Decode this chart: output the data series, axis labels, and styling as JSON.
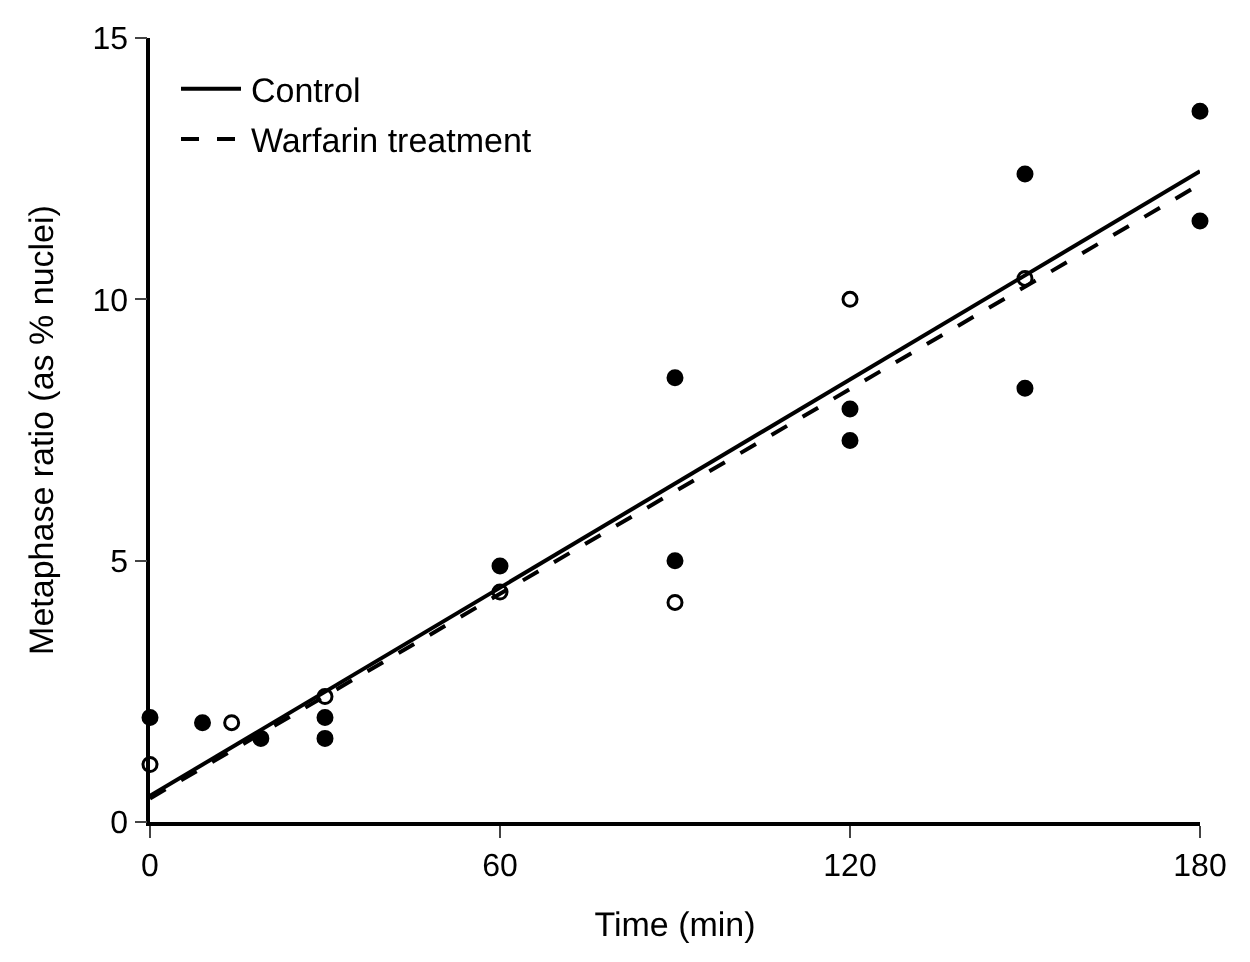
{
  "chart_data": {
    "type": "scatter",
    "xlabel": "Time (min)",
    "ylabel": "Metaphase ratio (as % nuclei)",
    "xlim": [
      0,
      180
    ],
    "ylim": [
      0,
      15
    ],
    "xticks": [
      0,
      60,
      120,
      180
    ],
    "yticks": [
      0,
      5,
      10,
      15
    ],
    "legend": "top left",
    "series": [
      {
        "marker": "circle",
        "color": "#000000",
        "x": [
          0,
          9,
          19,
          30,
          30,
          60,
          90,
          90,
          120,
          120,
          150,
          150,
          180,
          180
        ],
        "values": [
          2.0,
          1.9,
          1.6,
          2.0,
          1.6,
          4.9,
          8.5,
          5.0,
          7.9,
          7.3,
          8.3,
          12.4,
          11.5,
          13.6
        ]
      },
      {
        "marker": "circle-open",
        "color": "#000000",
        "x": [
          0,
          14,
          30,
          60,
          90,
          120,
          150
        ],
        "values": [
          1.1,
          1.9,
          2.4,
          4.4,
          4.2,
          10.0,
          10.4
        ]
      },
      {
        "type": "line",
        "name": "Control",
        "line_style": "solid",
        "color": "#000000",
        "x": [
          0,
          180
        ],
        "values": [
          0.5,
          12.45
        ]
      },
      {
        "type": "line",
        "name": "Warfarin treatment",
        "line_style": "dashed",
        "color": "#000000",
        "x": [
          0,
          180
        ],
        "values": [
          0.45,
          12.2
        ]
      }
    ]
  }
}
